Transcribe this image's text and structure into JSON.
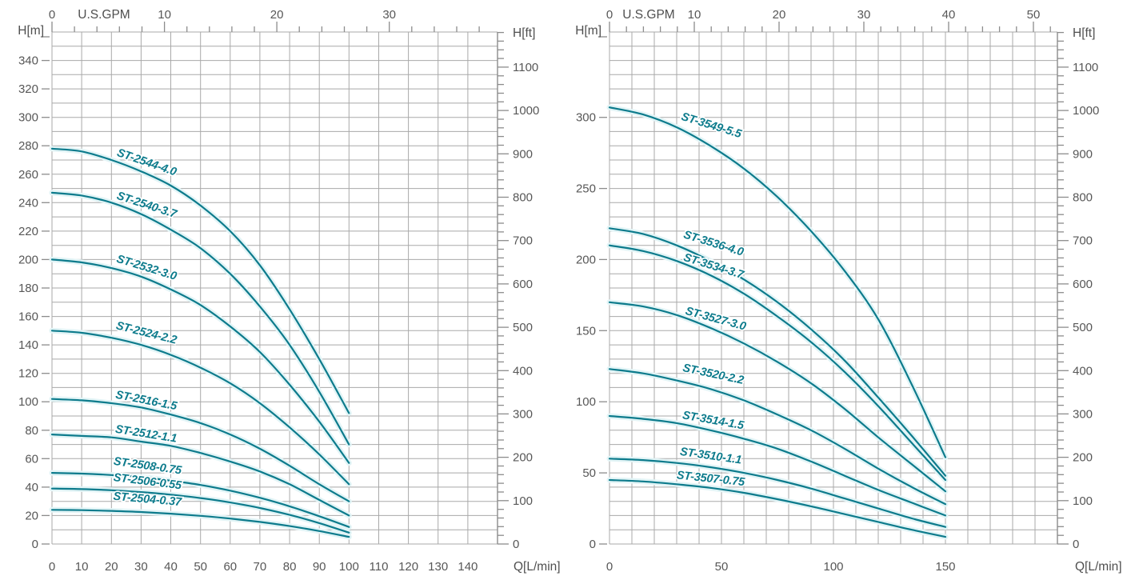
{
  "colors": {
    "curve": "#0d7b8c",
    "curve_glow": "#e2f4f6",
    "grid": "#a9a9a9",
    "axis": "#8c8c8c",
    "text": "#575757"
  },
  "chart_data": [
    {
      "type": "line",
      "title": "ST-25 series pump performance curves",
      "xlabel": "Q[L/min]",
      "x2label": "U.S.GPM",
      "ylabel": "H[m]",
      "y2label": "H[ft]",
      "xlim": [
        0,
        150
      ],
      "ylim": [
        0,
        360
      ],
      "grid_step": [
        10,
        10
      ],
      "x_tick_labels": [
        0,
        10,
        20,
        30,
        40,
        50,
        60,
        70,
        80,
        90,
        100,
        110,
        120,
        130,
        140
      ],
      "x2_tick_labels_gpm": [
        0,
        10,
        20,
        30
      ],
      "x2_minor_step_gpm": 2,
      "y_tick_labels": [
        0,
        20,
        40,
        60,
        80,
        100,
        120,
        140,
        160,
        180,
        200,
        220,
        240,
        260,
        280,
        300,
        320,
        340
      ],
      "y2_tick_labels_ft": [
        0,
        100,
        200,
        300,
        400,
        500,
        600,
        700,
        800,
        900,
        1000,
        1100
      ],
      "y2_minor_step_ft": 20,
      "legend_position": "labels-on-curves",
      "series": [
        {
          "name": "ST-2544-4.0",
          "label_at": [
            31.5,
            266
          ],
          "label_angle": 19,
          "points": [
            [
              0,
              278
            ],
            [
              10,
              276
            ],
            [
              20,
              270
            ],
            [
              30,
              262
            ],
            [
              40,
              252
            ],
            [
              50,
              238
            ],
            [
              60,
              220
            ],
            [
              70,
              196
            ],
            [
              80,
              165
            ],
            [
              90,
              130
            ],
            [
              100,
              92
            ]
          ]
        },
        {
          "name": "ST-2540-3.7",
          "label_at": [
            31.5,
            236
          ],
          "label_angle": 18,
          "points": [
            [
              0,
              247
            ],
            [
              10,
              245
            ],
            [
              20,
              240
            ],
            [
              30,
              232
            ],
            [
              40,
              221
            ],
            [
              50,
              208
            ],
            [
              60,
              190
            ],
            [
              70,
              167
            ],
            [
              80,
              140
            ],
            [
              90,
              107
            ],
            [
              100,
              70
            ]
          ]
        },
        {
          "name": "ST-2532-3.0",
          "label_at": [
            31.5,
            192
          ],
          "label_angle": 17,
          "points": [
            [
              0,
              200
            ],
            [
              10,
              198
            ],
            [
              20,
              194
            ],
            [
              30,
              188
            ],
            [
              40,
              179
            ],
            [
              50,
              168
            ],
            [
              60,
              153
            ],
            [
              70,
              135
            ],
            [
              80,
              112
            ],
            [
              90,
              86
            ],
            [
              100,
              57
            ]
          ]
        },
        {
          "name": "ST-2524-2.2",
          "label_at": [
            31.5,
            146
          ],
          "label_angle": 14,
          "points": [
            [
              0,
              150
            ],
            [
              10,
              148.5
            ],
            [
              20,
              145
            ],
            [
              30,
              140
            ],
            [
              40,
              133
            ],
            [
              50,
              124
            ],
            [
              60,
              113
            ],
            [
              70,
              99
            ],
            [
              80,
              82
            ],
            [
              90,
              63
            ],
            [
              100,
              42
            ]
          ]
        },
        {
          "name": "ST-2516-1.5",
          "label_at": [
            31.5,
            98.5
          ],
          "label_angle": 11,
          "points": [
            [
              0,
              102
            ],
            [
              10,
              101
            ],
            [
              20,
              99
            ],
            [
              30,
              96
            ],
            [
              40,
              91
            ],
            [
              50,
              85
            ],
            [
              60,
              77
            ],
            [
              70,
              67
            ],
            [
              80,
              55
            ],
            [
              90,
              42
            ],
            [
              100,
              30
            ]
          ]
        },
        {
          "name": "ST-2512-1.1",
          "label_at": [
            31.5,
            75
          ],
          "label_angle": 9,
          "points": [
            [
              0,
              77
            ],
            [
              10,
              76
            ],
            [
              20,
              75
            ],
            [
              30,
              72
            ],
            [
              40,
              69
            ],
            [
              50,
              64
            ],
            [
              60,
              58
            ],
            [
              70,
              51
            ],
            [
              80,
              42
            ],
            [
              90,
              31
            ],
            [
              100,
              20
            ]
          ]
        },
        {
          "name": "ST-2508-0.75",
          "label_at": [
            32,
            52.5
          ],
          "label_angle": 8,
          "points": [
            [
              0,
              50
            ],
            [
              10,
              49.5
            ],
            [
              20,
              48.5
            ],
            [
              30,
              47
            ],
            [
              40,
              44.5
            ],
            [
              50,
              41.5
            ],
            [
              60,
              37.5
            ],
            [
              70,
              32.5
            ],
            [
              80,
              26.5
            ],
            [
              90,
              19.5
            ],
            [
              100,
              12
            ]
          ]
        },
        {
          "name": "ST-2506-0.55",
          "label_at": [
            32,
            41.5
          ],
          "label_angle": 7,
          "points": [
            [
              0,
              39
            ],
            [
              10,
              38.6
            ],
            [
              20,
              37.8
            ],
            [
              30,
              36.5
            ],
            [
              40,
              34.7
            ],
            [
              50,
              32.3
            ],
            [
              60,
              29.2
            ],
            [
              70,
              25.3
            ],
            [
              80,
              20.5
            ],
            [
              90,
              14.7
            ],
            [
              100,
              8
            ]
          ]
        },
        {
          "name": "ST-2504-0.37",
          "label_at": [
            32,
            29
          ],
          "label_angle": 5,
          "points": [
            [
              0,
              24
            ],
            [
              10,
              23.8
            ],
            [
              20,
              23.3
            ],
            [
              30,
              22.5
            ],
            [
              40,
              21.3
            ],
            [
              50,
              19.8
            ],
            [
              60,
              17.9
            ],
            [
              70,
              15.5
            ],
            [
              80,
              12.6
            ],
            [
              90,
              9.1
            ],
            [
              100,
              5
            ]
          ]
        }
      ]
    },
    {
      "type": "line",
      "title": "ST-35 series pump performance curves",
      "xlabel": "Q[L/min]",
      "x2label": "U.S.GPM",
      "ylabel": "H[m]",
      "y2label": "H[ft]",
      "xlim": [
        0,
        200
      ],
      "ylim": [
        0,
        360
      ],
      "grid_step": [
        10,
        10
      ],
      "x_tick_labels": [
        0,
        50,
        100,
        150
      ],
      "x2_tick_labels_gpm": [
        0,
        10,
        20,
        30,
        40,
        50
      ],
      "x2_minor_step_gpm": 2,
      "y_tick_labels": [
        0,
        50,
        100,
        150,
        200,
        250,
        300
      ],
      "y2_tick_labels_ft": [
        0,
        100,
        200,
        300,
        400,
        500,
        600,
        700,
        800,
        900,
        1000,
        1100
      ],
      "y2_minor_step_ft": 20,
      "legend_position": "labels-on-curves",
      "series": [
        {
          "name": "ST-3549-5.5",
          "label_at": [
            45,
            292
          ],
          "label_angle": 17,
          "points": [
            [
              0,
              307
            ],
            [
              15,
              302
            ],
            [
              30,
              293
            ],
            [
              45,
              280
            ],
            [
              60,
              264
            ],
            [
              75,
              244
            ],
            [
              90,
              220
            ],
            [
              105,
              192
            ],
            [
              120,
              158
            ],
            [
              135,
              112
            ],
            [
              150,
              61
            ]
          ]
        },
        {
          "name": "ST-3536-4.0",
          "label_at": [
            46,
            209
          ],
          "label_angle": 17,
          "points": [
            [
              0,
              222
            ],
            [
              15,
              218
            ],
            [
              30,
              210
            ],
            [
              45,
              199
            ],
            [
              60,
              186
            ],
            [
              75,
              170
            ],
            [
              90,
              151
            ],
            [
              105,
              129
            ],
            [
              120,
              103
            ],
            [
              135,
              76
            ],
            [
              150,
              48
            ]
          ]
        },
        {
          "name": "ST-3534-3.7",
          "label_at": [
            46,
            193
          ],
          "label_angle": 17,
          "points": [
            [
              0,
              210
            ],
            [
              15,
              206
            ],
            [
              30,
              199
            ],
            [
              45,
              189
            ],
            [
              60,
              176
            ],
            [
              75,
              160
            ],
            [
              90,
              142
            ],
            [
              105,
              121
            ],
            [
              120,
              97
            ],
            [
              135,
              71
            ],
            [
              150,
              45
            ]
          ]
        },
        {
          "name": "ST-3527-3.0",
          "label_at": [
            47,
            156
          ],
          "label_angle": 15,
          "points": [
            [
              0,
              170
            ],
            [
              15,
              167
            ],
            [
              30,
              161
            ],
            [
              45,
              152
            ],
            [
              60,
              141
            ],
            [
              75,
              128
            ],
            [
              90,
              113
            ],
            [
              105,
              95
            ],
            [
              120,
              75
            ],
            [
              135,
              56
            ],
            [
              150,
              37
            ]
          ]
        },
        {
          "name": "ST-3520-2.2",
          "label_at": [
            46,
            117
          ],
          "label_angle": 12,
          "points": [
            [
              0,
              123
            ],
            [
              15,
              120
            ],
            [
              30,
              115
            ],
            [
              45,
              109
            ],
            [
              60,
              101
            ],
            [
              75,
              91
            ],
            [
              90,
              80
            ],
            [
              105,
              67
            ],
            [
              120,
              53
            ],
            [
              135,
              40
            ],
            [
              150,
              28
            ]
          ]
        },
        {
          "name": "ST-3514-1.5",
          "label_at": [
            46,
            84.5
          ],
          "label_angle": 10,
          "points": [
            [
              0,
              90
            ],
            [
              15,
              88
            ],
            [
              30,
              85
            ],
            [
              45,
              80
            ],
            [
              60,
              74
            ],
            [
              75,
              67
            ],
            [
              90,
              58
            ],
            [
              105,
              48
            ],
            [
              120,
              38
            ],
            [
              135,
              29
            ],
            [
              150,
              20
            ]
          ]
        },
        {
          "name": "ST-3510-1.1",
          "label_at": [
            45,
            59.5
          ],
          "label_angle": 8,
          "points": [
            [
              0,
              60
            ],
            [
              15,
              59
            ],
            [
              30,
              57
            ],
            [
              45,
              54
            ],
            [
              60,
              50
            ],
            [
              75,
              45
            ],
            [
              90,
              39
            ],
            [
              105,
              32
            ],
            [
              120,
              25
            ],
            [
              135,
              18
            ],
            [
              150,
              12
            ]
          ]
        },
        {
          "name": "ST-3507-0.75",
          "label_at": [
            45,
            43.5
          ],
          "label_angle": 6,
          "points": [
            [
              0,
              45
            ],
            [
              15,
              44
            ],
            [
              30,
              42
            ],
            [
              45,
              39.5
            ],
            [
              60,
              36
            ],
            [
              75,
              31.5
            ],
            [
              90,
              26.5
            ],
            [
              105,
              21
            ],
            [
              120,
              15.5
            ],
            [
              135,
              10
            ],
            [
              150,
              5
            ]
          ]
        }
      ]
    }
  ]
}
